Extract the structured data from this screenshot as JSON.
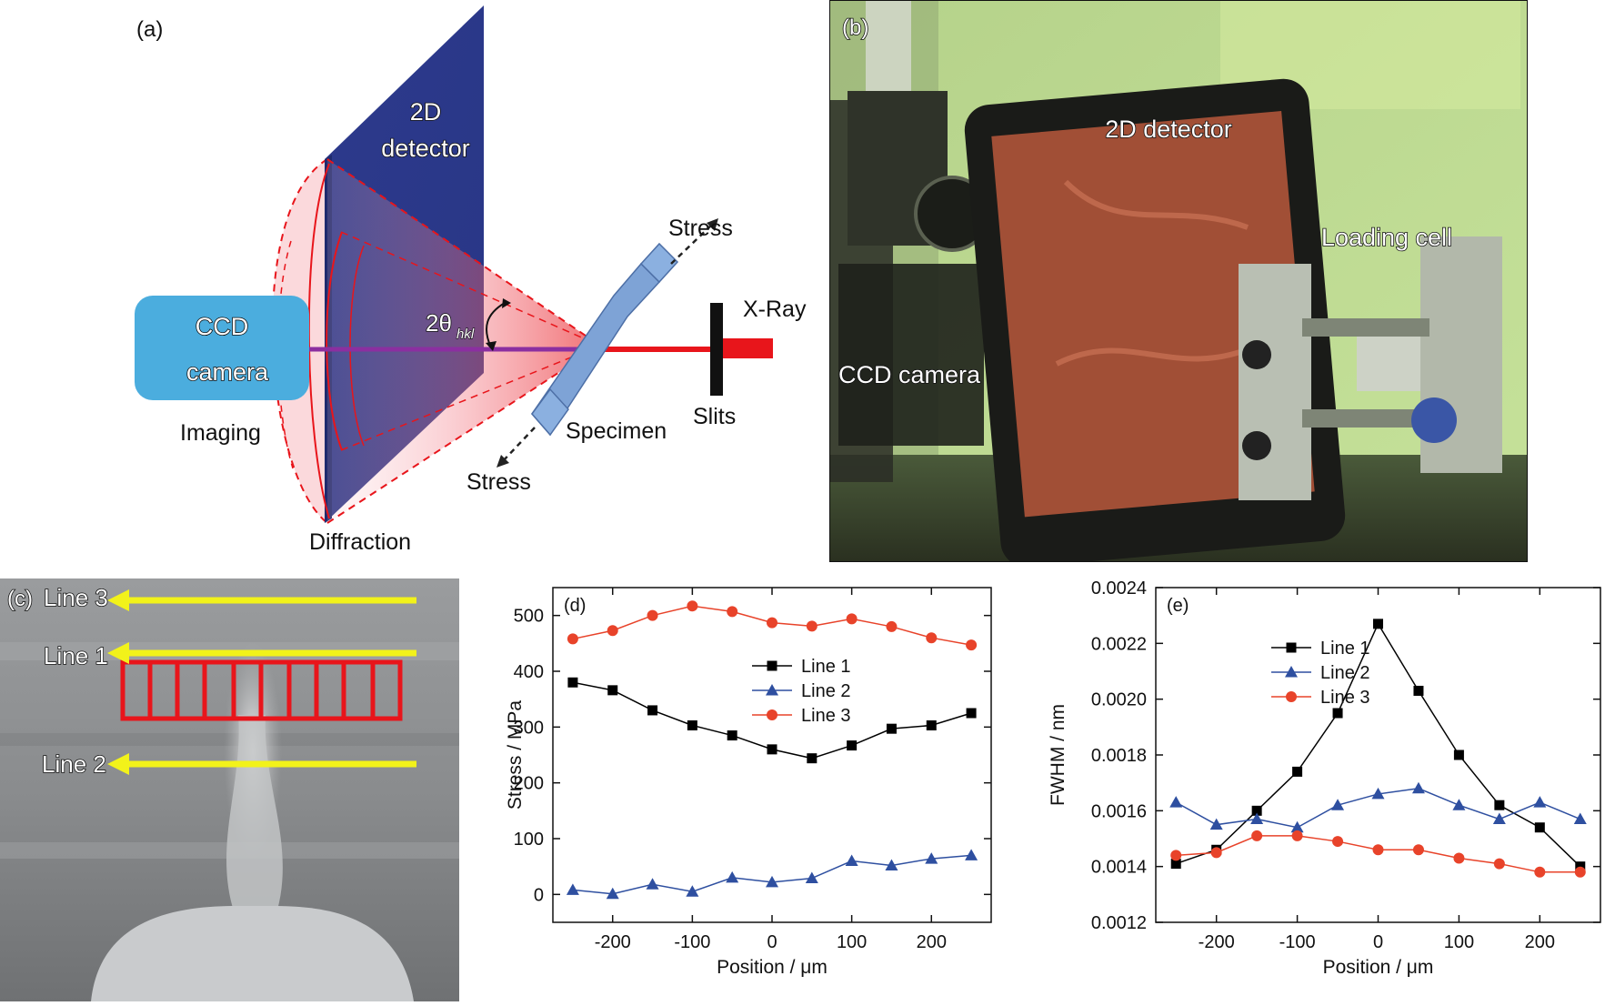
{
  "panel_a": {
    "label": "(a)",
    "detector": [
      "2D",
      "detector"
    ],
    "camera": [
      "CCD",
      "camera"
    ],
    "imaging": "Imaging",
    "diffraction": "Diffraction",
    "angle_main": "2θ",
    "angle_sub": "hkl",
    "stress_top": "Stress",
    "stress_bottom": "Stress",
    "specimen": "Specimen",
    "slits": "Slits",
    "xray": "X-Ray"
  },
  "panel_b": {
    "label": "(b)",
    "detector": "2D detector",
    "loading_cell": "Loading cell",
    "ccd_camera": "CCD camera"
  },
  "panel_c": {
    "label": "(c)",
    "line3": "Line 3",
    "line1": "Line 1",
    "line2": "Line 2",
    "colors": {
      "arrow": "#f2f21a",
      "grid": "#e8151b"
    }
  },
  "chart_data": [
    {
      "type": "line",
      "panel_label": "(d)",
      "xlabel": "Position / μm",
      "ylabel": "Stress / MPa",
      "xlim": [
        -275,
        275
      ],
      "ylim": [
        -50,
        550
      ],
      "xticks": [
        -200,
        -100,
        0,
        100,
        200
      ],
      "yticks": [
        0,
        100,
        200,
        300,
        400,
        500
      ],
      "x": [
        -250,
        -200,
        -150,
        -100,
        -50,
        0,
        50,
        100,
        150,
        200,
        250
      ],
      "legend_position": "center-right",
      "series": [
        {
          "name": "Line 1",
          "marker": "square",
          "color": "#000000",
          "values": [
            380,
            366,
            330,
            303,
            285,
            260,
            244,
            267,
            297,
            303,
            325
          ]
        },
        {
          "name": "Line 2",
          "marker": "triangle",
          "color": "#2e4fa0",
          "values": [
            8,
            1,
            18,
            5,
            30,
            22,
            29,
            60,
            52,
            64,
            70
          ]
        },
        {
          "name": "Line 3",
          "marker": "circle",
          "color": "#e8432a",
          "values": [
            458,
            473,
            500,
            517,
            507,
            487,
            481,
            494,
            480,
            460,
            447
          ]
        }
      ]
    },
    {
      "type": "line",
      "panel_label": "(e)",
      "xlabel": "Position / μm",
      "ylabel": "FWHM / nm",
      "xlim": [
        -275,
        275
      ],
      "ylim": [
        0.0012,
        0.0024
      ],
      "xticks": [
        -200,
        -100,
        0,
        100,
        200
      ],
      "yticks": [
        0.0012,
        0.0014,
        0.0016,
        0.0018,
        0.002,
        0.0022,
        0.0024
      ],
      "ytick_labels": [
        "0.0012",
        "0.0014",
        "0.0016",
        "0.0018",
        "0.0020",
        "0.0022",
        "0.0024"
      ],
      "x": [
        -250,
        -200,
        -150,
        -100,
        -50,
        0,
        50,
        100,
        150,
        200,
        250
      ],
      "legend_position": "top-right",
      "series": [
        {
          "name": "Line 1",
          "marker": "square",
          "color": "#000000",
          "values": [
            0.00141,
            0.00146,
            0.0016,
            0.00174,
            0.00195,
            0.00227,
            0.00203,
            0.0018,
            0.00162,
            0.00154,
            0.0014
          ]
        },
        {
          "name": "Line 2",
          "marker": "triangle",
          "color": "#2e4fa0",
          "values": [
            0.00163,
            0.00155,
            0.00157,
            0.00154,
            0.00162,
            0.00166,
            0.00168,
            0.00162,
            0.00157,
            0.00163,
            0.00157
          ]
        },
        {
          "name": "Line 3",
          "marker": "circle",
          "color": "#e8432a",
          "values": [
            0.00144,
            0.00145,
            0.00151,
            0.00151,
            0.00149,
            0.00146,
            0.00146,
            0.00143,
            0.00141,
            0.00138,
            0.00138
          ]
        }
      ]
    }
  ]
}
